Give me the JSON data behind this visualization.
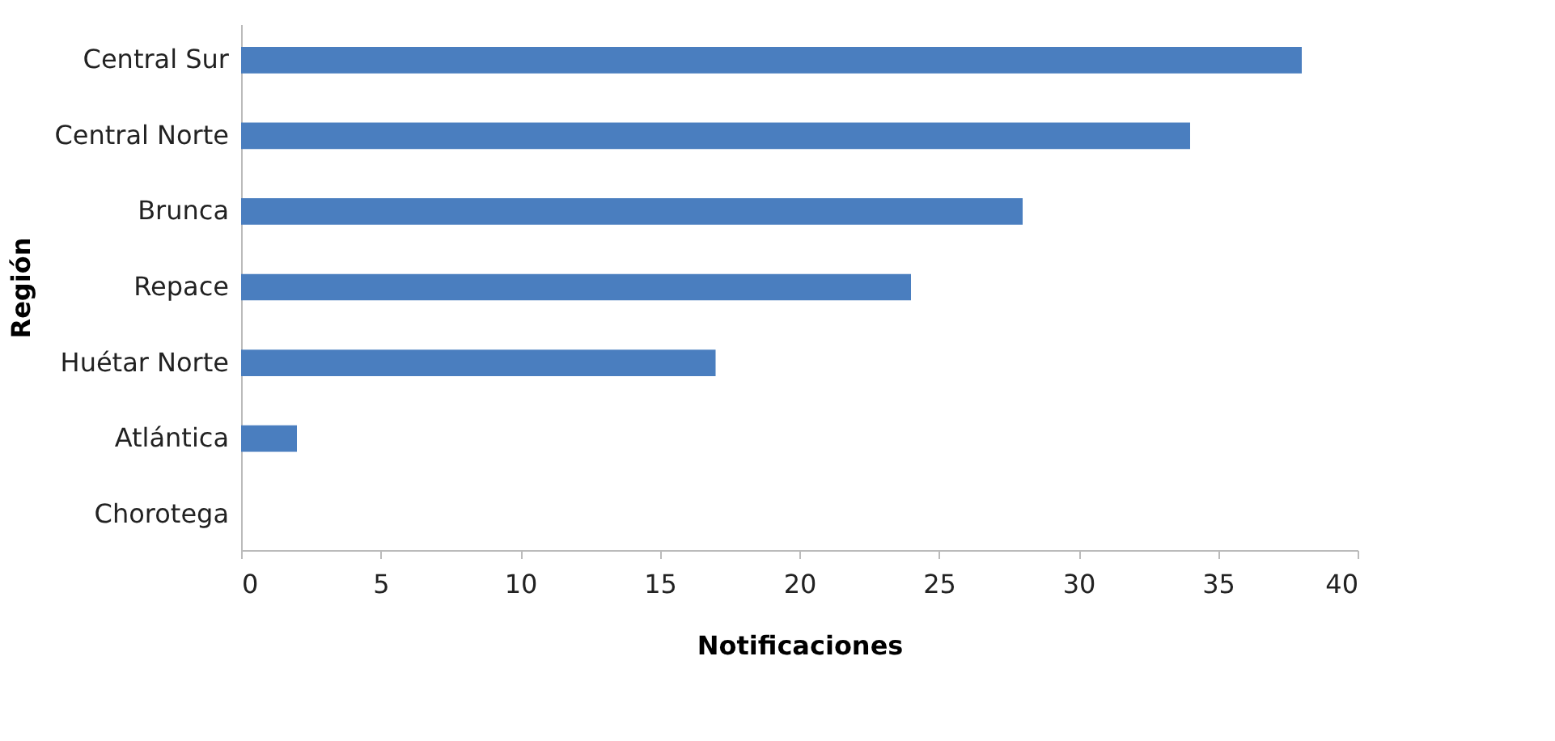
{
  "chart_data": {
    "type": "bar",
    "orientation": "horizontal",
    "categories": [
      "Central Sur",
      "Central Norte",
      "Brunca",
      "Repace",
      "Huétar Norte",
      "Atlántica",
      "Chorotega"
    ],
    "values": [
      38,
      34,
      28,
      24,
      17,
      2,
      0
    ],
    "color": "#4a7ebf",
    "xlim": [
      0,
      40
    ],
    "xticks": [
      0,
      5,
      10,
      15,
      20,
      25,
      30,
      35,
      40
    ],
    "xlabel": "Notificaciones",
    "ylabel": "Región",
    "grid": false
  }
}
